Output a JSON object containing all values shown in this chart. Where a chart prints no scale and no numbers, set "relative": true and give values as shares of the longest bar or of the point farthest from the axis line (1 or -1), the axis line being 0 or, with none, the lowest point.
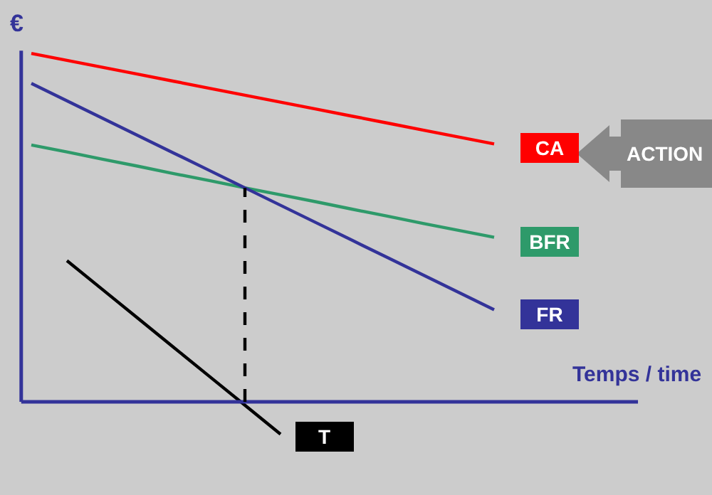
{
  "chart_data": {
    "type": "line",
    "relative": true,
    "xlabel": "Temps / time",
    "ylabel": "€",
    "categories": [
      null,
      null,
      null,
      null,
      null,
      null,
      null,
      null,
      null,
      null,
      null,
      null,
      null,
      null
    ],
    "series": [
      {
        "name": "CA",
        "color": "#ff0000",
        "values": [
          1.0,
          0.98,
          0.96,
          0.94,
          0.92,
          0.9,
          0.88,
          0.86,
          0.84,
          0.82,
          0.8,
          0.78,
          0.76,
          0.74
        ]
      },
      {
        "name": "BFR",
        "color": "#2e9a6a",
        "values": [
          0.737,
          0.717,
          0.696,
          0.676,
          0.655,
          0.635,
          0.614,
          0.594,
          0.574,
          0.553,
          0.533,
          0.512,
          0.492,
          0.472
        ]
      },
      {
        "name": "FR",
        "color": "#333399",
        "values": [
          0.914,
          0.864,
          0.814,
          0.764,
          0.714,
          0.664,
          0.614,
          0.564,
          0.514,
          0.464,
          0.414,
          0.364,
          0.314,
          0.264
        ]
      },
      {
        "name": "T",
        "color": "#000000",
        "values": [
          null,
          0.405,
          0.322,
          0.239,
          0.156,
          0.073,
          -0.01,
          -0.093,
          null,
          null,
          null,
          null,
          null,
          null
        ]
      }
    ],
    "ref_lines": [
      {
        "axis": "y",
        "value": 0,
        "color": "#333399"
      }
    ],
    "annotations": [
      "ACTION"
    ],
    "grid": false,
    "legend": false,
    "marker": "none",
    "line_style": "solid"
  }
}
